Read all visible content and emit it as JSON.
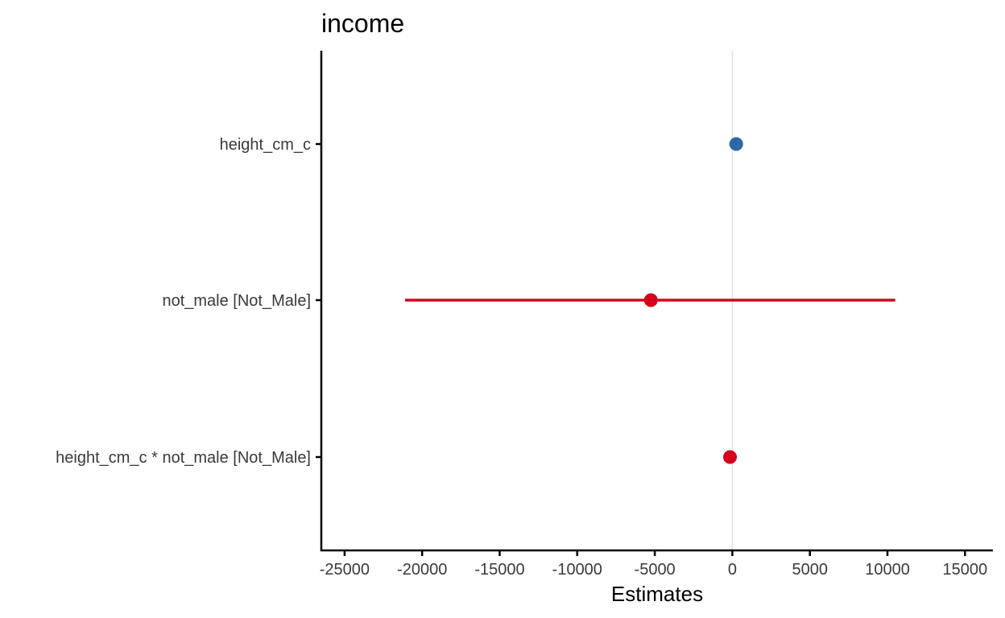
{
  "chart_data": {
    "type": "scatter",
    "title": "income",
    "xlabel": "Estimates",
    "ylabel": "",
    "xlim": [
      -26500,
      16800
    ],
    "xticks": [
      -25000,
      -20000,
      -15000,
      -10000,
      -5000,
      0,
      5000,
      10000,
      15000
    ],
    "xtick_labels": [
      "-25000",
      "-20000",
      "-15000",
      "-10000",
      "-5000",
      "0",
      "5000",
      "10000",
      "15000"
    ],
    "grid": false,
    "zero_line": true,
    "terms": [
      {
        "label": "height_cm_c",
        "estimate": 250,
        "ci_low": null,
        "ci_high": null,
        "color": "#2b69a8"
      },
      {
        "label": "not_male [Not_Male]",
        "estimate": -5250,
        "ci_low": -21100,
        "ci_high": 10500,
        "color": "#d7001c"
      },
      {
        "label": "height_cm_c * not_male [Not_Male]",
        "estimate": -150,
        "ci_low": null,
        "ci_high": null,
        "color": "#d7001c"
      }
    ]
  }
}
